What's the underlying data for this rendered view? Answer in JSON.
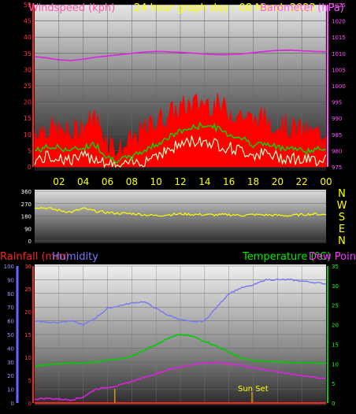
{
  "title": "24 hour graph day : 08 March 2022",
  "chart_data": [
    {
      "type": "line",
      "name": "wind-pressure-panel",
      "left_axis_label": "Windspeed (kph)",
      "right_axis_label": "Barometer (hPa)",
      "left_ticks": [
        "0",
        "5",
        "10",
        "15",
        "20",
        "25",
        "30",
        "35",
        "40",
        "45",
        "50"
      ],
      "right_ticks": [
        "975",
        "980",
        "985",
        "990",
        "995",
        "1000",
        "1005",
        "1010",
        "1015",
        "1020",
        "1025"
      ],
      "left_ylim": [
        0,
        50
      ],
      "right_ylim": [
        975,
        1025
      ],
      "x_ticks": [
        "02",
        "04",
        "06",
        "08",
        "10",
        "12",
        "14",
        "16",
        "18",
        "20",
        "22",
        "00"
      ],
      "x_hours": [
        0,
        1,
        2,
        3,
        4,
        5,
        6,
        7,
        8,
        9,
        10,
        11,
        12,
        13,
        14,
        15,
        16,
        17,
        18,
        19,
        20,
        21,
        22,
        23,
        24
      ],
      "series": [
        {
          "key": "gust",
          "color": "#ff0000",
          "values": [
            11,
            12,
            11,
            10,
            13,
            15,
            8,
            5,
            8,
            11,
            14,
            16,
            18,
            19,
            20,
            19,
            17,
            16,
            14,
            15,
            13,
            12,
            11,
            10,
            11
          ]
        },
        {
          "key": "average",
          "color": "#00dd00",
          "values": [
            5,
            6,
            6,
            5,
            6,
            7,
            3,
            2,
            3,
            5,
            7,
            9,
            11,
            12,
            13,
            12,
            10,
            9,
            7,
            7,
            6,
            6,
            5,
            5,
            6
          ]
        },
        {
          "key": "wind_low",
          "color": "#ccffcc",
          "values": [
            2,
            3,
            3,
            2,
            3,
            3,
            1,
            0,
            1,
            2,
            4,
            5,
            7,
            8,
            8,
            7,
            6,
            5,
            4,
            4,
            3,
            3,
            2,
            2,
            3
          ]
        },
        {
          "key": "pressure",
          "color": "#dd22dd",
          "values": [
            1009.0,
            1008.6,
            1008.0,
            1007.8,
            1008.2,
            1008.8,
            1009.2,
            1009.6,
            1010.0,
            1010.4,
            1010.6,
            1010.5,
            1010.3,
            1010.1,
            1009.8,
            1009.6,
            1009.6,
            1009.8,
            1010.2,
            1010.6,
            1010.9,
            1011.0,
            1010.8,
            1010.6,
            1010.5
          ]
        }
      ]
    },
    {
      "type": "line",
      "name": "wind-direction-panel",
      "left_ticks": [
        "0",
        "90",
        "180",
        "270",
        "360"
      ],
      "ylim": [
        0,
        360
      ],
      "compass_labels": [
        "N",
        "W",
        "S",
        "E",
        "N"
      ],
      "series": [
        {
          "key": "direction",
          "color": "#ffff00",
          "values": [
            245,
            238,
            222,
            208,
            235,
            215,
            205,
            200,
            198,
            190,
            183,
            190,
            195,
            192,
            190,
            188,
            190,
            185,
            190,
            188,
            185,
            183,
            190,
            195,
            190
          ]
        }
      ]
    },
    {
      "type": "line",
      "name": "rain-humidity-temp-panel",
      "rain_label": "Rainfall (mm)",
      "humidity_label": "Humidity",
      "temperature_label": "Temperature (°C)",
      "dew_label": "Dew Point",
      "humidity_ticks": [
        "0",
        "10",
        "20",
        "30",
        "40",
        "50",
        "60",
        "70",
        "80",
        "90",
        "100"
      ],
      "rain_ticks": [
        "0",
        "5",
        "10",
        "15",
        "20",
        "25",
        "30"
      ],
      "temp_ticks": [
        "0",
        "5",
        "10",
        "15",
        "20",
        "25",
        "30",
        "35"
      ],
      "rain_ylim": [
        0,
        30
      ],
      "humidity_ylim": [
        0,
        100
      ],
      "temp_ylim": [
        0,
        35
      ],
      "annotation": "Sun Set",
      "series": [
        {
          "key": "humidity",
          "color": "#7777ee",
          "values": [
            60,
            59,
            59,
            60,
            57,
            62,
            69,
            71,
            73,
            74,
            69,
            64,
            61,
            59,
            60,
            70,
            80,
            84,
            86,
            90,
            90,
            90,
            89,
            88,
            87
          ]
        },
        {
          "key": "temperature",
          "color": "#00cc00",
          "values": [
            9.5,
            9.8,
            10.0,
            10.2,
            10.2,
            10.4,
            11.0,
            11.2,
            12.0,
            13.5,
            15.0,
            16.5,
            17.5,
            17.0,
            15.8,
            14.5,
            13.0,
            11.5,
            10.8,
            10.6,
            10.5,
            10.4,
            10.3,
            10.2,
            10.1
          ]
        },
        {
          "key": "dew_point",
          "color": "#dd22dd",
          "values": [
            1.0,
            1.2,
            1.0,
            0.8,
            1.5,
            3.5,
            4.0,
            4.5,
            5.5,
            6.5,
            7.5,
            8.5,
            9.2,
            9.8,
            10.2,
            10.4,
            10.0,
            9.6,
            9.0,
            8.5,
            8.0,
            7.4,
            7.0,
            6.6,
            6.2
          ]
        },
        {
          "key": "rainfall",
          "color": "#ff2222",
          "values": [
            0,
            0,
            0,
            0,
            0,
            0,
            0,
            0,
            0,
            0,
            0,
            0,
            0,
            0,
            0,
            0,
            0,
            0,
            0,
            0,
            0,
            0,
            0,
            0,
            0
          ]
        }
      ]
    }
  ]
}
